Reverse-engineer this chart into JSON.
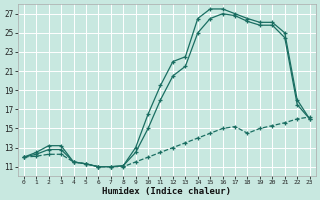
{
  "xlabel": "Humidex (Indice chaleur)",
  "bg_color": "#c8e8e0",
  "grid_color": "#ffffff",
  "line_color": "#1a6e62",
  "xlim_min": -0.5,
  "xlim_max": 23.5,
  "ylim_min": 10,
  "ylim_max": 28,
  "xticks": [
    0,
    1,
    2,
    3,
    4,
    5,
    6,
    7,
    8,
    9,
    10,
    11,
    12,
    13,
    14,
    15,
    16,
    17,
    18,
    19,
    20,
    21,
    22,
    23
  ],
  "yticks": [
    11,
    13,
    15,
    17,
    19,
    21,
    23,
    25,
    27
  ],
  "hours": [
    0,
    1,
    2,
    3,
    4,
    5,
    6,
    7,
    8,
    9,
    10,
    11,
    12,
    13,
    14,
    15,
    16,
    17,
    18,
    19,
    20,
    21,
    22,
    23
  ],
  "line1": [
    12.0,
    12.5,
    13.2,
    13.2,
    11.5,
    11.3,
    11.0,
    11.0,
    11.1,
    13.0,
    16.5,
    19.5,
    22.0,
    22.5,
    26.5,
    27.5,
    27.5,
    27.0,
    26.5,
    26.1,
    26.1,
    25.0,
    18.0,
    16.0
  ],
  "line2": [
    12.0,
    12.3,
    12.8,
    12.8,
    11.5,
    11.3,
    11.0,
    11.0,
    11.1,
    12.5,
    15.0,
    18.0,
    20.5,
    21.5,
    25.0,
    26.5,
    27.0,
    26.8,
    26.2,
    25.8,
    25.8,
    24.5,
    17.5,
    16.0
  ],
  "line3": [
    12.0,
    12.1,
    12.3,
    12.3,
    11.5,
    11.3,
    11.0,
    11.0,
    11.0,
    11.5,
    12.0,
    12.5,
    13.0,
    13.5,
    14.0,
    14.5,
    15.0,
    15.2,
    14.5,
    15.0,
    15.3,
    15.6,
    16.0,
    16.2
  ]
}
